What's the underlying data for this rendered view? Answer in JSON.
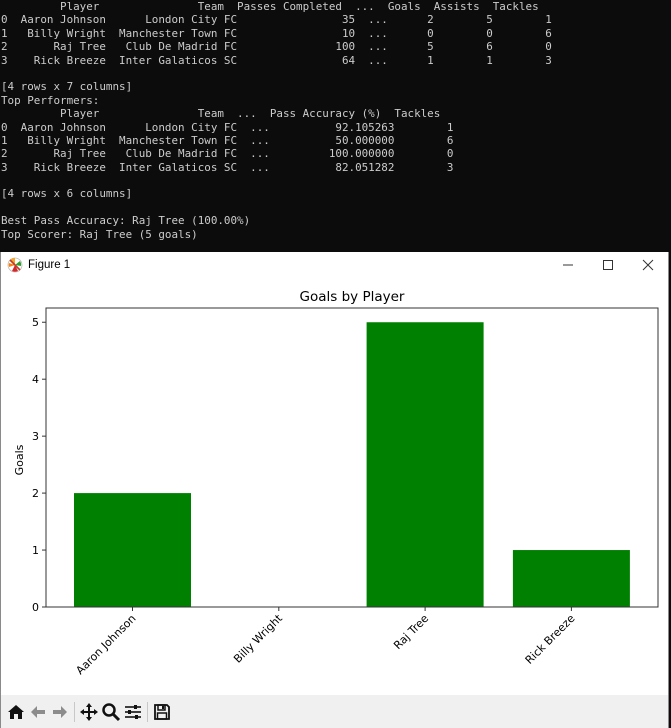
{
  "terminal": {
    "lines": [
      "         Player               Team  Passes Completed  ...  Goals  Assists  Tackles",
      "0  Aaron Johnson      London City FC                35  ...      2        5        1",
      "1   Billy Wright  Manchester Town FC                10  ...      0        0        6",
      "2       Raj Tree   Club De Madrid FC               100  ...      5        6        0",
      "3    Rick Breeze  Inter Galaticos SC                64  ...      1        1        3",
      "",
      "[4 rows x 7 columns]",
      "Top Performers:",
      "         Player               Team  ...  Pass Accuracy (%)  Tackles",
      "0  Aaron Johnson      London City FC  ...          92.105263        1",
      "1   Billy Wright  Manchester Town FC  ...          50.000000        6",
      "2       Raj Tree   Club De Madrid FC  ...         100.000000        0",
      "3    Rick Breeze  Inter Galaticos SC  ...          82.051282        3",
      "",
      "[4 rows x 6 columns]",
      "",
      "Best Pass Accuracy: Raj Tree (100.00%)",
      "Top Scorer: Raj Tree (5 goals)"
    ],
    "table1": {
      "columns": [
        "Player",
        "Team",
        "Passes Completed",
        "...",
        "Goals",
        "Assists",
        "Tackles"
      ],
      "rows": [
        [
          "0",
          "Aaron Johnson",
          "London City FC",
          "35",
          "...",
          "2",
          "5",
          "1"
        ],
        [
          "1",
          "Billy Wright",
          "Manchester Town FC",
          "10",
          "...",
          "0",
          "0",
          "6"
        ],
        [
          "2",
          "Raj Tree",
          "Club De Madrid FC",
          "100",
          "...",
          "5",
          "6",
          "0"
        ],
        [
          "3",
          "Rick Breeze",
          "Inter Galaticos SC",
          "64",
          "...",
          "1",
          "1",
          "3"
        ]
      ],
      "shape": "[4 rows x 7 columns]"
    },
    "table2": {
      "heading": "Top Performers:",
      "columns": [
        "Player",
        "Team",
        "...",
        "Pass Accuracy (%)",
        "Tackles"
      ],
      "rows": [
        [
          "0",
          "Aaron Johnson",
          "London City FC",
          "...",
          "92.105263",
          "1"
        ],
        [
          "1",
          "Billy Wright",
          "Manchester Town FC",
          "...",
          "50.000000",
          "6"
        ],
        [
          "2",
          "Raj Tree",
          "Club De Madrid FC",
          "...",
          "100.000000",
          "0"
        ],
        [
          "3",
          "Rick Breeze",
          "Inter Galaticos SC",
          "...",
          "82.051282",
          "3"
        ]
      ],
      "shape": "[4 rows x 6 columns]"
    },
    "best_pass_accuracy": "Best Pass Accuracy: Raj Tree (100.00%)",
    "top_scorer": "Top Scorer: Raj Tree (5 goals)"
  },
  "window": {
    "title": "Figure 1",
    "icon": "matplotlib-icon",
    "controls": [
      "minimize-icon",
      "maximize-icon",
      "close-icon"
    ]
  },
  "toolbar": {
    "buttons": [
      {
        "icon": "home-icon",
        "label": "Home"
      },
      {
        "icon": "back-arrow-icon",
        "label": "Back"
      },
      {
        "icon": "forward-arrow-icon",
        "label": "Forward"
      },
      {
        "icon": "pan-icon",
        "label": "Pan"
      },
      {
        "icon": "zoom-icon",
        "label": "Zoom"
      },
      {
        "icon": "configure-subplots-icon",
        "label": "Configure subplots"
      },
      {
        "icon": "save-icon",
        "label": "Save"
      }
    ]
  },
  "colors": {
    "bar": "#008000",
    "terminal_bg": "#0c0c0c",
    "terminal_fg": "#cccccc",
    "toolbar_bg": "#f0f0f0"
  },
  "chart_data": {
    "type": "bar",
    "title": "Goals by Player",
    "xlabel": "",
    "ylabel": "Goals",
    "categories": [
      "Aaron Johnson",
      "Billy Wright",
      "Raj Tree",
      "Rick Breeze"
    ],
    "values": [
      2,
      0,
      5,
      1
    ],
    "yticks": [
      "0",
      "1",
      "2",
      "3",
      "4",
      "5"
    ],
    "ylim": [
      0,
      5.25
    ],
    "grid": false,
    "legend": null,
    "xtick_rotation": 45,
    "bar_color": "#008000"
  }
}
